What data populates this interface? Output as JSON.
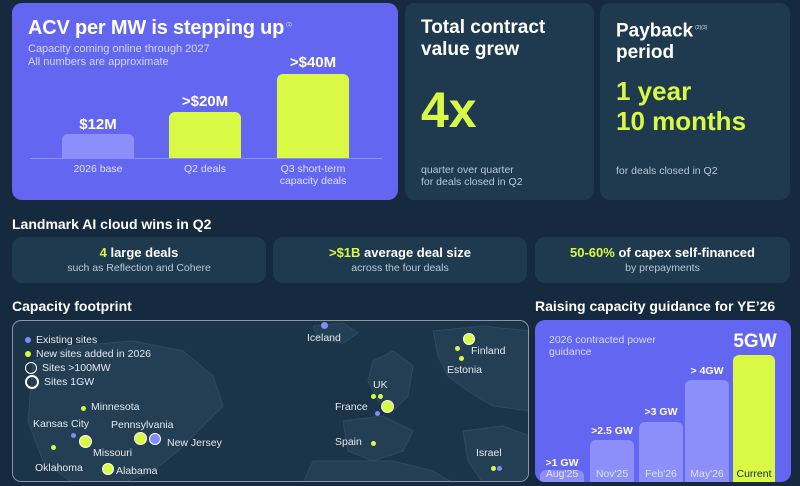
{
  "acv": {
    "title": "ACV per MW is stepping up",
    "footnote": "(1)",
    "subtitle_line1": "Capacity coming online through 2027",
    "subtitle_line2": "All numbers are approximate",
    "bars": [
      {
        "value": "$12M",
        "label": "2026 base",
        "label2": ""
      },
      {
        "value": ">$20M",
        "label": "Q2 deals",
        "label2": ""
      },
      {
        "value": ">$40M",
        "label": "Q3 short-term",
        "label2": "capacity deals"
      }
    ],
    "colors": {
      "base": "#8b8ff7",
      "highlight": "#d9f945"
    }
  },
  "tcv": {
    "title_line1": "Total contract",
    "title_line2": "value grew",
    "figure": "4x",
    "note_line1": "quarter over quarter",
    "note_line2": "for deals closed in Q2"
  },
  "payback": {
    "title_line1": "Payback",
    "title_line2": "period",
    "footnote": "(2)(3)",
    "figure_line1": "1 year",
    "figure_line2": "10 months",
    "note": "for deals closed in Q2"
  },
  "wins": {
    "title": "Landmark AI cloud wins in Q2",
    "items": [
      {
        "highlight": "4",
        "rest": " large deals",
        "sub": "such as Reflection and Cohere"
      },
      {
        "highlight": ">$1B",
        "rest": " average deal size",
        "sub": "across the four deals"
      },
      {
        "highlight": "50-60%",
        "rest": " of capex self-financed",
        "sub": "by prepayments"
      }
    ]
  },
  "footprint": {
    "title": "Capacity footprint",
    "legend": [
      "Existing sites",
      "New sites added in 2026",
      "Sites >100MW",
      "Sites 1GW"
    ],
    "places": [
      "Iceland",
      "Finland",
      "Estonia",
      "UK",
      "France",
      "Spain",
      "Israel",
      "Minnesota",
      "Kansas City",
      "Pennsylvania",
      "New Jersey",
      "Missouri",
      "Oklahoma",
      "Alabama"
    ]
  },
  "guidance": {
    "title": "Raising capacity guidance for YE’26",
    "subtitle": "2026 contracted power guidance",
    "bars": [
      {
        "value": ">1 GW",
        "label": "Aug'25"
      },
      {
        "value": ">2.5 GW",
        "label": "Nov'25"
      },
      {
        "value": ">3 GW",
        "label": "Feb'26"
      },
      {
        "value": "> 4GW",
        "label": "May'26"
      },
      {
        "value": "5GW",
        "label": "Current"
      }
    ]
  }
}
